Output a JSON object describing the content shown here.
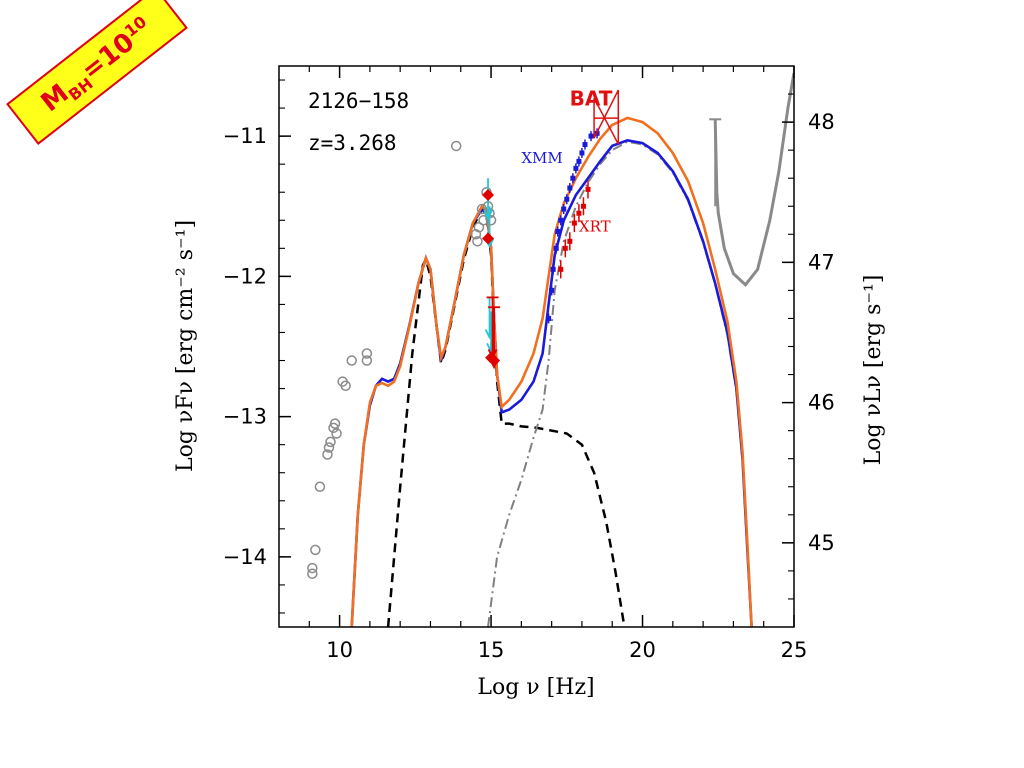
{
  "banner": {
    "label": "M",
    "sub": "BH",
    "mid": "=10",
    "sup": "10"
  },
  "colors": {
    "data_grey": "#8a8a8a",
    "model_blue": "#1a1adb",
    "model_orange": "#f07020",
    "xray_red": "#e00000",
    "uv_cyan": "#20c8d8",
    "bat_red": "#e01010",
    "banner_yellow": "#ffff1a"
  },
  "chart_data": {
    "type": "scatter",
    "source_name": "2126−158",
    "redshift_label": "z=3.268",
    "xlabel": "Log ν [Hz]",
    "ylabel_left": "Log νFν [erg cm⁻² s⁻¹]",
    "ylabel_right": "Log νLν [erg s⁻¹]",
    "xlim": [
      8,
      25
    ],
    "ylim_left": [
      -14.5,
      -10.5
    ],
    "ylim_right_offset": 58.9,
    "x_ticks": [
      10,
      15,
      20,
      25
    ],
    "x_tick_labels": [
      "10",
      "15",
      "20",
      "25"
    ],
    "y_ticks_left": [
      -11,
      -12,
      -13,
      -14
    ],
    "y_tick_labels_left": [
      "−11",
      "−12",
      "−13",
      "−14"
    ],
    "y_ticks_right": [
      48,
      47,
      46,
      45
    ],
    "y_tick_labels_right": [
      "48",
      "47",
      "46",
      "45"
    ],
    "instrument_labels": [
      {
        "text": "BAT",
        "x": 18.3,
        "y": -10.78,
        "color": "#e01010"
      },
      {
        "text": "XMM",
        "x": 16.0,
        "y": -11.19,
        "color": "#1a1adb"
      },
      {
        "text": "XRT",
        "x": 17.9,
        "y": -11.68,
        "color": "#e00000"
      }
    ],
    "archival_points": [
      [
        9.1,
        -14.08
      ],
      [
        9.1,
        -14.12
      ],
      [
        9.2,
        -13.95
      ],
      [
        9.35,
        -13.5
      ],
      [
        9.6,
        -13.27
      ],
      [
        9.65,
        -13.22
      ],
      [
        9.7,
        -13.18
      ],
      [
        9.8,
        -13.08
      ],
      [
        9.85,
        -13.05
      ],
      [
        9.9,
        -13.12
      ],
      [
        10.1,
        -12.75
      ],
      [
        10.2,
        -12.78
      ],
      [
        10.4,
        -12.6
      ],
      [
        10.9,
        -12.55
      ],
      [
        10.9,
        -12.6
      ],
      [
        13.85,
        -11.07
      ],
      [
        14.5,
        -11.7
      ],
      [
        14.55,
        -11.75
      ],
      [
        14.6,
        -11.65
      ],
      [
        14.7,
        -11.52
      ],
      [
        14.75,
        -11.6
      ],
      [
        14.85,
        -11.4
      ],
      [
        14.9,
        -11.5
      ],
      [
        14.95,
        -11.55
      ],
      [
        15.0,
        -11.6
      ]
    ],
    "optical_points": [
      [
        14.9,
        -11.42
      ],
      [
        14.9,
        -11.73
      ],
      [
        15.0,
        -12.58
      ],
      [
        15.1,
        -12.6
      ]
    ],
    "uv_upper_limits": [
      [
        14.9,
        -11.3
      ],
      [
        14.95,
        -11.5
      ],
      [
        14.95,
        -12.15
      ],
      [
        15.0,
        -12.25
      ]
    ],
    "xrt_points": [
      [
        17.3,
        -11.95
      ],
      [
        17.45,
        -11.8
      ],
      [
        17.6,
        -11.75
      ],
      [
        17.75,
        -11.62
      ],
      [
        17.9,
        -11.55
      ],
      [
        18.05,
        -11.5
      ],
      [
        18.2,
        -11.38
      ]
    ],
    "xmm_points": [
      [
        16.9,
        -12.3
      ],
      [
        17.0,
        -12.1
      ],
      [
        17.05,
        -11.95
      ],
      [
        17.15,
        -11.8
      ],
      [
        17.2,
        -11.68
      ],
      [
        17.3,
        -11.6
      ],
      [
        17.4,
        -11.52
      ],
      [
        17.5,
        -11.45
      ],
      [
        17.6,
        -11.37
      ],
      [
        17.7,
        -11.3
      ],
      [
        17.8,
        -11.23
      ],
      [
        17.9,
        -11.18
      ],
      [
        18.0,
        -11.12
      ],
      [
        18.1,
        -11.06
      ],
      [
        18.3,
        -11.0
      ],
      [
        18.5,
        -10.98
      ]
    ],
    "bat_bowtie": {
      "x_range": [
        18.4,
        19.2
      ],
      "y_center": -10.9
    },
    "fermi_limit": [
      [
        22.4,
        -10.88
      ],
      [
        22.45,
        -11.4
      ],
      [
        22.5,
        -11.55
      ],
      [
        22.7,
        -11.8
      ],
      [
        23.0,
        -11.98
      ],
      [
        23.4,
        -12.06
      ],
      [
        23.8,
        -11.95
      ],
      [
        24.2,
        -11.6
      ],
      [
        24.5,
        -11.25
      ],
      [
        24.8,
        -10.8
      ],
      [
        25.0,
        -10.55
      ]
    ],
    "model_blue": [
      [
        10.4,
        -14.5
      ],
      [
        10.6,
        -13.7
      ],
      [
        10.8,
        -13.2
      ],
      [
        11.0,
        -12.92
      ],
      [
        11.2,
        -12.78
      ],
      [
        11.4,
        -12.73
      ],
      [
        11.6,
        -12.75
      ],
      [
        11.8,
        -12.73
      ],
      [
        12.0,
        -12.62
      ],
      [
        12.3,
        -12.35
      ],
      [
        12.6,
        -12.05
      ],
      [
        12.85,
        -11.87
      ],
      [
        13.0,
        -11.95
      ],
      [
        13.2,
        -12.35
      ],
      [
        13.35,
        -12.6
      ],
      [
        13.5,
        -12.5
      ],
      [
        13.8,
        -12.18
      ],
      [
        14.1,
        -11.85
      ],
      [
        14.4,
        -11.62
      ],
      [
        14.7,
        -11.52
      ],
      [
        14.85,
        -11.55
      ],
      [
        15.0,
        -11.8
      ],
      [
        15.1,
        -12.3
      ],
      [
        15.2,
        -12.7
      ],
      [
        15.35,
        -12.97
      ],
      [
        15.6,
        -12.95
      ],
      [
        16.0,
        -12.88
      ],
      [
        16.4,
        -12.75
      ],
      [
        16.7,
        -12.55
      ],
      [
        16.9,
        -12.2
      ],
      [
        17.1,
        -11.85
      ],
      [
        17.4,
        -11.6
      ],
      [
        17.8,
        -11.42
      ],
      [
        18.2,
        -11.3
      ],
      [
        18.6,
        -11.18
      ],
      [
        19.0,
        -11.07
      ],
      [
        19.5,
        -11.03
      ],
      [
        20.0,
        -11.05
      ],
      [
        20.5,
        -11.12
      ],
      [
        21.0,
        -11.25
      ],
      [
        21.5,
        -11.45
      ],
      [
        22.0,
        -11.75
      ],
      [
        22.4,
        -12.05
      ],
      [
        22.8,
        -12.4
      ],
      [
        23.1,
        -12.8
      ],
      [
        23.3,
        -13.3
      ],
      [
        23.45,
        -13.9
      ],
      [
        23.6,
        -14.5
      ]
    ],
    "model_orange": [
      [
        10.4,
        -14.5
      ],
      [
        10.6,
        -13.7
      ],
      [
        10.8,
        -13.2
      ],
      [
        11.0,
        -12.9
      ],
      [
        11.2,
        -12.78
      ],
      [
        11.4,
        -12.76
      ],
      [
        11.6,
        -12.78
      ],
      [
        11.8,
        -12.75
      ],
      [
        12.0,
        -12.64
      ],
      [
        12.3,
        -12.36
      ],
      [
        12.6,
        -12.05
      ],
      [
        12.85,
        -11.87
      ],
      [
        13.0,
        -11.95
      ],
      [
        13.2,
        -12.35
      ],
      [
        13.35,
        -12.58
      ],
      [
        13.5,
        -12.5
      ],
      [
        13.8,
        -12.18
      ],
      [
        14.1,
        -11.85
      ],
      [
        14.4,
        -11.62
      ],
      [
        14.7,
        -11.5
      ],
      [
        14.85,
        -11.53
      ],
      [
        15.0,
        -11.8
      ],
      [
        15.1,
        -12.3
      ],
      [
        15.2,
        -12.7
      ],
      [
        15.35,
        -12.93
      ],
      [
        15.6,
        -12.88
      ],
      [
        16.0,
        -12.75
      ],
      [
        16.4,
        -12.55
      ],
      [
        16.7,
        -12.3
      ],
      [
        16.9,
        -12.0
      ],
      [
        17.1,
        -11.7
      ],
      [
        17.4,
        -11.48
      ],
      [
        17.8,
        -11.3
      ],
      [
        18.2,
        -11.15
      ],
      [
        18.6,
        -11.02
      ],
      [
        19.0,
        -10.92
      ],
      [
        19.5,
        -10.87
      ],
      [
        20.0,
        -10.9
      ],
      [
        20.5,
        -10.98
      ],
      [
        21.0,
        -11.12
      ],
      [
        21.5,
        -11.32
      ],
      [
        22.0,
        -11.62
      ],
      [
        22.4,
        -11.95
      ],
      [
        22.8,
        -12.32
      ],
      [
        23.1,
        -12.75
      ],
      [
        23.3,
        -13.25
      ],
      [
        23.45,
        -13.85
      ],
      [
        23.6,
        -14.5
      ]
    ],
    "disk_dashed": [
      [
        11.6,
        -14.5
      ],
      [
        12.0,
        -13.5
      ],
      [
        12.4,
        -12.55
      ],
      [
        12.75,
        -11.92
      ],
      [
        12.85,
        -11.88
      ],
      [
        13.0,
        -12.0
      ],
      [
        13.2,
        -12.35
      ],
      [
        13.35,
        -12.62
      ],
      [
        13.5,
        -12.52
      ],
      [
        13.8,
        -12.2
      ],
      [
        14.1,
        -11.88
      ],
      [
        14.4,
        -11.65
      ],
      [
        14.7,
        -11.52
      ],
      [
        14.85,
        -11.56
      ],
      [
        15.0,
        -11.85
      ],
      [
        15.1,
        -12.35
      ],
      [
        15.2,
        -12.75
      ],
      [
        15.35,
        -13.05
      ],
      [
        15.6,
        -13.05
      ],
      [
        16.0,
        -13.07
      ],
      [
        16.5,
        -13.08
      ],
      [
        17.0,
        -13.1
      ],
      [
        17.5,
        -13.12
      ],
      [
        18.0,
        -13.2
      ],
      [
        18.4,
        -13.4
      ],
      [
        18.8,
        -13.75
      ],
      [
        19.1,
        -14.1
      ],
      [
        19.4,
        -14.5
      ]
    ],
    "jet_dashdot": [
      [
        14.9,
        -14.5
      ],
      [
        15.2,
        -14.0
      ],
      [
        15.6,
        -13.7
      ],
      [
        16.0,
        -13.45
      ],
      [
        16.4,
        -13.15
      ],
      [
        16.7,
        -12.95
      ],
      [
        16.9,
        -12.6
      ],
      [
        17.1,
        -12.1
      ],
      [
        17.4,
        -11.75
      ],
      [
        17.8,
        -11.5
      ],
      [
        18.2,
        -11.33
      ],
      [
        18.6,
        -11.2
      ],
      [
        19.0,
        -11.1
      ],
      [
        19.5,
        -11.04
      ],
      [
        20.0,
        -11.06
      ],
      [
        20.5,
        -11.13
      ],
      [
        21.0,
        -11.26
      ],
      [
        21.5,
        -11.46
      ],
      [
        22.0,
        -11.76
      ],
      [
        22.4,
        -12.06
      ],
      [
        22.8,
        -12.42
      ],
      [
        23.1,
        -12.82
      ],
      [
        23.3,
        -13.32
      ],
      [
        23.45,
        -13.92
      ],
      [
        23.6,
        -14.5
      ]
    ]
  }
}
